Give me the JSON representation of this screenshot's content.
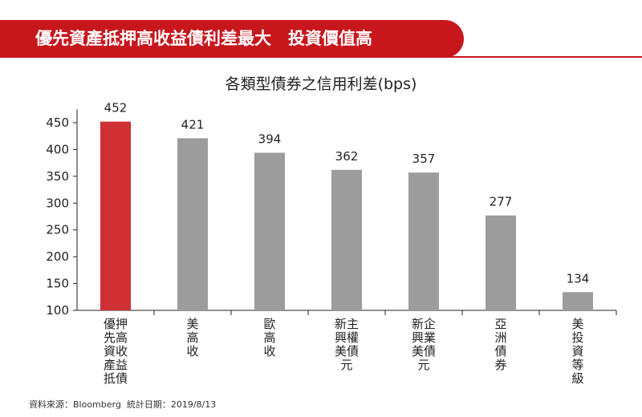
{
  "header": {
    "banner_text": "優先資產抵押高收益債利差最大　投資價值高"
  },
  "footer": {
    "source_note": "資料來源：Bloomberg  統計日期：2019/8/13"
  },
  "colors": {
    "accent": "#c8161d",
    "highlight_bar": "#cf3034",
    "default_bar": "#9c9c9c"
  },
  "chart_data": {
    "type": "bar",
    "title": "各類型債券之信用利差(bps)",
    "xlabel": "",
    "ylabel": "",
    "ylim": [
      100,
      475
    ],
    "yticks": [
      100,
      150,
      200,
      250,
      300,
      350,
      400,
      450
    ],
    "grid": false,
    "legend": "none",
    "categories": [
      "優押先高資收產益抵債",
      "美高收",
      "歐高收",
      "新主興權美債元",
      "新企興業美債元",
      "亞洲債券",
      "美投資等級"
    ],
    "category_lines": [
      [
        "優押",
        "先高",
        "資收",
        "產益",
        "抵債"
      ],
      [
        "美",
        "高",
        "收"
      ],
      [
        "歐",
        "高",
        "收"
      ],
      [
        "新主",
        "興權",
        "美債",
        "元"
      ],
      [
        "新企",
        "興業",
        "美債",
        "元"
      ],
      [
        "亞",
        "洲",
        "債",
        "券"
      ],
      [
        "美",
        "投",
        "資",
        "等",
        "級"
      ]
    ],
    "values": [
      452,
      421,
      394,
      362,
      357,
      277,
      134
    ],
    "highlight_index": 0
  }
}
